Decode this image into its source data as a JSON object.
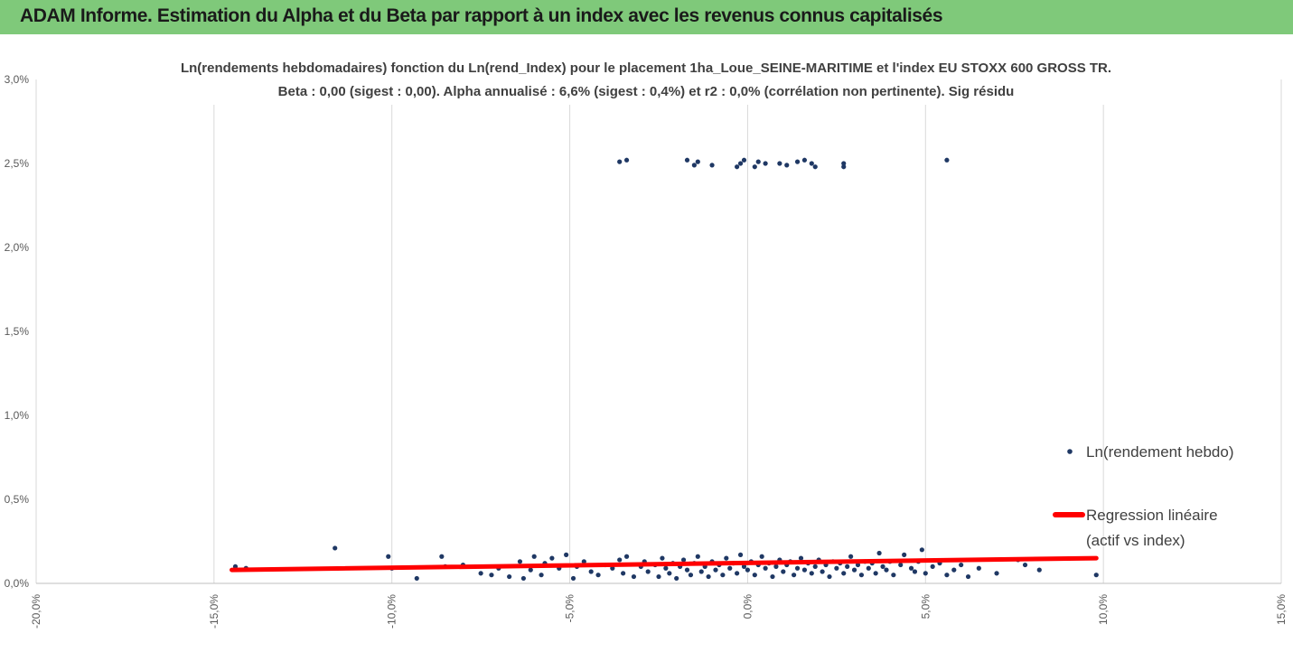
{
  "header": {
    "title": "ADAM Informe. Estimation du Alpha et du Beta par rapport à un index avec les revenus connus capitalisés"
  },
  "colors": {
    "header_bg": "#7fc97a",
    "points": "#1f3864",
    "regression": "#ff0000",
    "grid": "#d9d9d9"
  },
  "chart_data": {
    "type": "scatter",
    "title": "Ln(rendements hebdomadaires) fonction du Ln(rend_Index) pour le placement 1ha_Loue_SEINE-MARITIME  et l'index EU STOXX 600 GROSS TR.",
    "subtitle": "Beta : 0,00 (sigest : 0,00).  Alpha annualisé : 6,6% (sigest : 0,4%) et r2 : 0,0% (corrélation non pertinente). Sig résidu",
    "xlabel": "",
    "ylabel": "",
    "xlim": [
      -0.2,
      0.15
    ],
    "ylim": [
      0.0,
      0.03
    ],
    "x_ticks": [
      -0.2,
      -0.15,
      -0.1,
      -0.05,
      0.0,
      0.05,
      0.1,
      0.15
    ],
    "x_tick_labels": [
      "-20,0%",
      "-15,0%",
      "-10,0%",
      "-5,0%",
      "0,0%",
      "5,0%",
      "10,0%",
      "15,0%"
    ],
    "y_ticks": [
      0.0,
      0.005,
      0.01,
      0.015,
      0.02,
      0.025,
      0.03
    ],
    "y_tick_labels": [
      "0,0%",
      "0,5%",
      "1,0%",
      "1,5%",
      "2,0%",
      "2,5%",
      "3,0%"
    ],
    "grid": "vertical",
    "legend_position": "right",
    "series": [
      {
        "name": "Ln(rendement hebdo)",
        "type": "scatter",
        "points": [
          [
            -0.144,
            0.001
          ],
          [
            -0.141,
            0.0009
          ],
          [
            -0.116,
            0.0021
          ],
          [
            -0.101,
            0.0016
          ],
          [
            -0.1,
            0.0009
          ],
          [
            -0.093,
            0.0003
          ],
          [
            -0.086,
            0.0016
          ],
          [
            -0.085,
            0.001
          ],
          [
            -0.08,
            0.0011
          ],
          [
            -0.075,
            0.0006
          ],
          [
            -0.072,
            0.0005
          ],
          [
            -0.07,
            0.0009
          ],
          [
            -0.067,
            0.0004
          ],
          [
            -0.064,
            0.0013
          ],
          [
            -0.063,
            0.0003
          ],
          [
            -0.061,
            0.0008
          ],
          [
            -0.06,
            0.0016
          ],
          [
            -0.058,
            0.0005
          ],
          [
            -0.057,
            0.0012
          ],
          [
            -0.055,
            0.0015
          ],
          [
            -0.053,
            0.0009
          ],
          [
            -0.051,
            0.0017
          ],
          [
            -0.049,
            0.0003
          ],
          [
            -0.048,
            0.001
          ],
          [
            -0.046,
            0.0013
          ],
          [
            -0.044,
            0.0007
          ],
          [
            -0.042,
            0.0005
          ],
          [
            -0.04,
            0.0011
          ],
          [
            -0.038,
            0.0009
          ],
          [
            -0.036,
            0.0014
          ],
          [
            -0.035,
            0.0006
          ],
          [
            -0.034,
            0.0016
          ],
          [
            -0.032,
            0.0004
          ],
          [
            -0.03,
            0.001
          ],
          [
            -0.029,
            0.0013
          ],
          [
            -0.028,
            0.0007
          ],
          [
            -0.026,
            0.0011
          ],
          [
            -0.025,
            0.0004
          ],
          [
            -0.024,
            0.0015
          ],
          [
            -0.023,
            0.0009
          ],
          [
            -0.022,
            0.0006
          ],
          [
            -0.021,
            0.0012
          ],
          [
            -0.02,
            0.0003
          ],
          [
            -0.019,
            0.001
          ],
          [
            -0.018,
            0.0014
          ],
          [
            -0.017,
            0.0008
          ],
          [
            -0.016,
            0.0005
          ],
          [
            -0.015,
            0.0012
          ],
          [
            -0.014,
            0.0016
          ],
          [
            -0.013,
            0.0007
          ],
          [
            -0.012,
            0.001
          ],
          [
            -0.011,
            0.0004
          ],
          [
            -0.01,
            0.0013
          ],
          [
            -0.009,
            0.0008
          ],
          [
            -0.008,
            0.0011
          ],
          [
            -0.007,
            0.0005
          ],
          [
            -0.006,
            0.0015
          ],
          [
            -0.005,
            0.0009
          ],
          [
            -0.004,
            0.0012
          ],
          [
            -0.003,
            0.0006
          ],
          [
            -0.002,
            0.0017
          ],
          [
            -0.001,
            0.001
          ],
          [
            0.0,
            0.0008
          ],
          [
            0.001,
            0.0013
          ],
          [
            0.002,
            0.0005
          ],
          [
            0.003,
            0.0011
          ],
          [
            0.004,
            0.0016
          ],
          [
            0.005,
            0.0009
          ],
          [
            0.006,
            0.0012
          ],
          [
            0.007,
            0.0004
          ],
          [
            0.008,
            0.001
          ],
          [
            0.009,
            0.0014
          ],
          [
            0.01,
            0.0007
          ],
          [
            0.011,
            0.0011
          ],
          [
            0.012,
            0.0013
          ],
          [
            0.013,
            0.0005
          ],
          [
            0.014,
            0.0009
          ],
          [
            0.015,
            0.0015
          ],
          [
            0.016,
            0.0008
          ],
          [
            0.017,
            0.0012
          ],
          [
            0.018,
            0.0006
          ],
          [
            0.019,
            0.001
          ],
          [
            0.02,
            0.0014
          ],
          [
            0.021,
            0.0007
          ],
          [
            0.022,
            0.0011
          ],
          [
            0.023,
            0.0004
          ],
          [
            0.024,
            0.0013
          ],
          [
            0.025,
            0.0009
          ],
          [
            0.026,
            0.0012
          ],
          [
            0.027,
            0.0006
          ],
          [
            0.028,
            0.001
          ],
          [
            0.029,
            0.0016
          ],
          [
            0.03,
            0.0008
          ],
          [
            0.031,
            0.0011
          ],
          [
            0.032,
            0.0005
          ],
          [
            0.033,
            0.0013
          ],
          [
            0.034,
            0.0009
          ],
          [
            0.035,
            0.0012
          ],
          [
            0.036,
            0.0006
          ],
          [
            0.037,
            0.0018
          ],
          [
            0.038,
            0.001
          ],
          [
            0.039,
            0.0008
          ],
          [
            0.04,
            0.0013
          ],
          [
            0.041,
            0.0005
          ],
          [
            0.043,
            0.0011
          ],
          [
            0.044,
            0.0017
          ],
          [
            0.046,
            0.0009
          ],
          [
            0.047,
            0.0007
          ],
          [
            0.048,
            0.0013
          ],
          [
            0.049,
            0.002
          ],
          [
            0.05,
            0.0006
          ],
          [
            0.052,
            0.001
          ],
          [
            0.054,
            0.0012
          ],
          [
            0.056,
            0.0005
          ],
          [
            0.058,
            0.0008
          ],
          [
            0.06,
            0.0011
          ],
          [
            0.062,
            0.0004
          ],
          [
            0.065,
            0.0009
          ],
          [
            0.07,
            0.0006
          ],
          [
            0.076,
            0.0014
          ],
          [
            0.078,
            0.0011
          ],
          [
            0.082,
            0.0008
          ],
          [
            0.098,
            0.0005
          ],
          [
            -0.036,
            0.0251
          ],
          [
            -0.034,
            0.0252
          ],
          [
            -0.017,
            0.0252
          ],
          [
            -0.015,
            0.0249
          ],
          [
            -0.014,
            0.0251
          ],
          [
            -0.01,
            0.0249
          ],
          [
            -0.003,
            0.0248
          ],
          [
            -0.002,
            0.025
          ],
          [
            -0.001,
            0.0252
          ],
          [
            0.002,
            0.0248
          ],
          [
            0.003,
            0.0251
          ],
          [
            0.005,
            0.025
          ],
          [
            0.009,
            0.025
          ],
          [
            0.011,
            0.0249
          ],
          [
            0.014,
            0.0251
          ],
          [
            0.016,
            0.0252
          ],
          [
            0.018,
            0.025
          ],
          [
            0.019,
            0.0248
          ],
          [
            0.027,
            0.025
          ],
          [
            0.027,
            0.0248
          ],
          [
            0.056,
            0.0252
          ]
        ]
      },
      {
        "name": "Regression linéaire (actif vs index)",
        "type": "line",
        "points": [
          [
            -0.145,
            0.0008
          ],
          [
            0.098,
            0.0015
          ]
        ]
      }
    ]
  },
  "legend": {
    "scatter_label": "Ln(rendement hebdo)",
    "line_label_1": "Regression linéaire",
    "line_label_2": "(actif vs index)"
  }
}
